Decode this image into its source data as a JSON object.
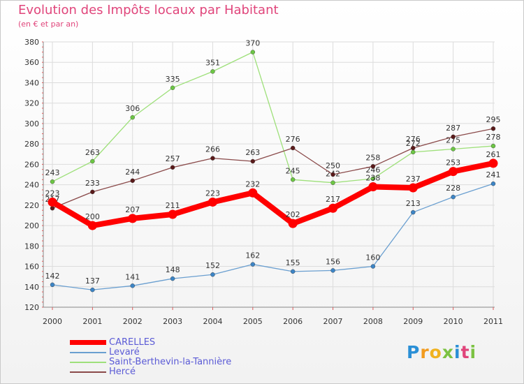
{
  "header": {
    "title": "Evolution des Impôts locaux par Habitant",
    "subtitle": "(en € et par an)"
  },
  "logo": {
    "letters": [
      "P",
      "r",
      "o",
      "x",
      "i",
      "t",
      "i"
    ],
    "colors": [
      "#2a8fd6",
      "#f29b1f",
      "#f0b21f",
      "#7cc242",
      "#2a8fd6",
      "#e0457b",
      "#7cc242"
    ]
  },
  "chart_data": {
    "type": "line",
    "title": "Evolution des Impôts locaux par Habitant",
    "subtitle": "(en € et par an)",
    "x": [
      "2000",
      "2001",
      "2002",
      "2003",
      "2004",
      "2005",
      "2006",
      "2007",
      "2008",
      "2009",
      "2010",
      "2011"
    ],
    "ylim": [
      120,
      380
    ],
    "yticks": [
      120,
      140,
      160,
      180,
      200,
      220,
      240,
      260,
      280,
      300,
      320,
      340,
      360,
      380
    ],
    "grid": true,
    "legend_position": "bottom-left",
    "series": [
      {
        "name": "Levaré",
        "color": "#6a9fd0",
        "marker": "#3d85c6",
        "width": "thin",
        "values": [
          142,
          137,
          141,
          148,
          152,
          162,
          155,
          156,
          160,
          213,
          228,
          241
        ]
      },
      {
        "name": "Saint-Berthevin-la-Tannière",
        "color": "#9ee07a",
        "marker": "#6cc644",
        "width": "thin",
        "values": [
          243,
          263,
          306,
          335,
          351,
          370,
          245,
          242,
          246,
          272,
          275,
          278
        ]
      },
      {
        "name": "Hercé",
        "color": "#8a4a4a",
        "marker": "#5a1a1a",
        "width": "thin",
        "values": [
          217,
          233,
          244,
          257,
          266,
          263,
          276,
          250,
          258,
          276,
          287,
          295
        ]
      },
      {
        "name": "CARELLES",
        "color": "#ff0000",
        "marker": "#ff0000",
        "width": "thick",
        "values": [
          223,
          200,
          207,
          211,
          223,
          232,
          202,
          217,
          238,
          237,
          253,
          261
        ]
      }
    ],
    "legend_order": [
      "CARELLES",
      "Levaré",
      "Saint-Berthevin-la-Tannière",
      "Hercé"
    ]
  }
}
